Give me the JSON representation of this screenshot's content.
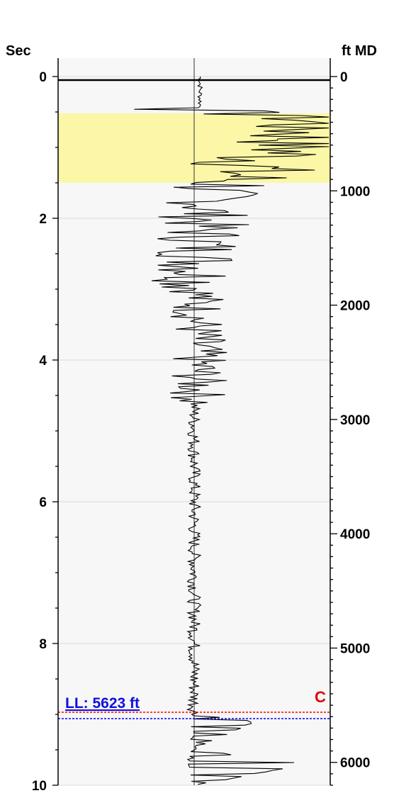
{
  "chart_data": {
    "type": "line",
    "title": "",
    "left_axis": {
      "label": "Sec",
      "range": [
        0,
        10
      ],
      "ticks": [
        "0",
        "2",
        "4",
        "6",
        "8",
        "10"
      ]
    },
    "right_axis": {
      "label": "ft MD",
      "range": [
        0,
        6200
      ],
      "ticks": [
        "0",
        "1000",
        "2000",
        "3000",
        "4000",
        "5000",
        "6000"
      ]
    },
    "grid": true,
    "highlight_band": {
      "from_sec": 0.52,
      "to_sec": 1.5,
      "color": "#fbf7a6"
    },
    "series": [
      {
        "type": "trace",
        "description_points_sec_amp": [
          [
            0.0,
            0.0
          ],
          [
            0.2,
            0.0
          ],
          [
            0.45,
            -0.9
          ],
          [
            0.55,
            0.95
          ],
          [
            0.8,
            0.9
          ],
          [
            1.0,
            0.85
          ],
          [
            1.2,
            0.55
          ],
          [
            1.5,
            0.3
          ],
          [
            1.8,
            0.2
          ],
          [
            2.0,
            0.12
          ],
          [
            2.5,
            0.08
          ],
          [
            3.0,
            0.04
          ],
          [
            3.5,
            0.02
          ],
          [
            4.0,
            0.02
          ],
          [
            4.5,
            0.01
          ],
          [
            5.0,
            0.0
          ],
          [
            5.5,
            0.0
          ],
          [
            6.0,
            0.0
          ],
          [
            7.0,
            0.0
          ],
          [
            8.0,
            0.0
          ],
          [
            9.0,
            0.0
          ],
          [
            9.1,
            0.45
          ],
          [
            9.5,
            0.0
          ],
          [
            9.7,
            0.85
          ],
          [
            10.0,
            0.0
          ]
        ]
      }
    ],
    "markers": {
      "ll": {
        "label": "LL: 5623 ft",
        "sec": 9.06,
        "color": "#0000ff"
      },
      "c": {
        "label": "C",
        "sec": 8.97,
        "color": "#ff0000"
      }
    }
  }
}
